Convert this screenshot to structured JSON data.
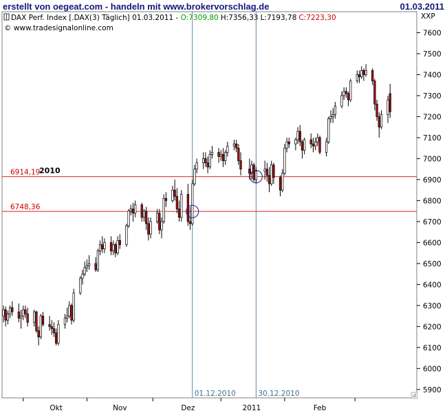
{
  "header": {
    "title": "erstellt von oegeat.com - handeln mit www.brokervorschlag.de",
    "date": "01.03.2011"
  },
  "info": {
    "instrument": "DAX Perf. Index [.DAX(3)  Täglich] 01.03.2011 -",
    "open": "O:7309,80",
    "high": "H:7356,33",
    "low": "L:7193,78",
    "close": "C:7223,30",
    "copyright": "© www.tradesignalonline.com"
  },
  "colors": {
    "up": "#ffffff",
    "down": "#aa1111",
    "hline": "#dd2222",
    "vline": "#5b8aa6",
    "open_green": "#009900",
    "close_red": "#cc0000"
  },
  "chart_data": {
    "type": "candlestick",
    "currency_label": "XXP",
    "ylim": [
      5860,
      7700
    ],
    "yticks": [
      5900,
      6000,
      6100,
      6200,
      6300,
      6400,
      6500,
      6600,
      6700,
      6800,
      6900,
      7000,
      7100,
      7200,
      7300,
      7400,
      7500,
      7600
    ],
    "ytick_labels": [
      "5900",
      "6000",
      "6100",
      "6200",
      "6300",
      "6400",
      "6500",
      "6600",
      "6700",
      "6800",
      "6900",
      "7000",
      "7100",
      "7200",
      "7300",
      "7400",
      "7500",
      "7600"
    ],
    "xlim": [
      "2010-09-06",
      "2011-03-10"
    ],
    "month_ticks": [
      "2010-09-15",
      "2010-10-14",
      "2010-11-13",
      "2010-12-14",
      "2011-01-12",
      "2011-02-13"
    ],
    "month_labels": [
      "Okt",
      "Nov",
      "Dez",
      "2011",
      "Feb"
    ],
    "month_label_dates": [
      "2010-09-30",
      "2010-10-29",
      "2010-11-29",
      "2010-12-28",
      "2011-01-28"
    ],
    "hlines": [
      {
        "value": 6914.19,
        "label": "6914,19",
        "tag": "2010"
      },
      {
        "value": 6748.36,
        "label": "6748,36",
        "tag": ""
      }
    ],
    "vlines": [
      {
        "date": "2010-12-01",
        "label": "01.12.2010"
      },
      {
        "date": "2010-12-30",
        "label": "30.12.2010"
      }
    ],
    "circles": [
      {
        "date": "2010-12-01",
        "value": 6748
      },
      {
        "date": "2010-12-30",
        "value": 6914
      }
    ],
    "candles": [
      [
        "2010-09-06",
        6250,
        6300,
        6220,
        6280
      ],
      [
        "2010-09-07",
        6280,
        6295,
        6200,
        6230
      ],
      [
        "2010-09-08",
        6230,
        6275,
        6210,
        6260
      ],
      [
        "2010-09-09",
        6260,
        6300,
        6240,
        6290
      ],
      [
        "2010-09-10",
        6290,
        6320,
        6250,
        6270
      ],
      [
        "2010-09-13",
        6270,
        6310,
        6220,
        6240
      ],
      [
        "2010-09-14",
        6240,
        6280,
        6190,
        6250
      ],
      [
        "2010-09-15",
        6250,
        6300,
        6230,
        6280
      ],
      [
        "2010-09-16",
        6280,
        6300,
        6240,
        6260
      ],
      [
        "2010-09-17",
        6260,
        6290,
        6200,
        6220
      ],
      [
        "2010-09-20",
        6220,
        6280,
        6200,
        6270
      ],
      [
        "2010-09-21",
        6270,
        6275,
        6170,
        6180
      ],
      [
        "2010-09-22",
        6180,
        6200,
        6110,
        6150
      ],
      [
        "2010-09-23",
        6150,
        6260,
        6140,
        6250
      ],
      [
        "2010-09-24",
        6250,
        6270,
        6200,
        6210
      ],
      [
        "2010-09-27",
        6210,
        6250,
        6180,
        6200
      ],
      [
        "2010-09-28",
        6200,
        6230,
        6160,
        6190
      ],
      [
        "2010-09-29",
        6190,
        6220,
        6150,
        6170
      ],
      [
        "2010-09-30",
        6170,
        6190,
        6110,
        6120
      ],
      [
        "2010-10-01",
        6120,
        6230,
        6110,
        6210
      ],
      [
        "2010-10-04",
        6210,
        6260,
        6190,
        6240
      ],
      [
        "2010-10-05",
        6240,
        6290,
        6220,
        6250
      ],
      [
        "2010-10-06",
        6250,
        6320,
        6240,
        6300
      ],
      [
        "2010-10-07",
        6300,
        6310,
        6210,
        6230
      ],
      [
        "2010-10-08",
        6230,
        6380,
        6220,
        6360
      ],
      [
        "2010-10-11",
        6360,
        6440,
        6350,
        6430
      ],
      [
        "2010-10-12",
        6430,
        6470,
        6400,
        6450
      ],
      [
        "2010-10-13",
        6450,
        6510,
        6440,
        6480
      ],
      [
        "2010-10-14",
        6480,
        6520,
        6460,
        6490
      ],
      [
        "2010-10-15",
        6490,
        6540,
        6470,
        6500
      ],
      [
        "2010-10-18",
        6500,
        6530,
        6460,
        6470
      ],
      [
        "2010-10-19",
        6470,
        6570,
        6460,
        6560
      ],
      [
        "2010-10-20",
        6560,
        6610,
        6540,
        6590
      ],
      [
        "2010-10-21",
        6590,
        6630,
        6550,
        6570
      ],
      [
        "2010-10-22",
        6570,
        6620,
        6550,
        6600
      ],
      [
        "2010-10-25",
        6600,
        6630,
        6540,
        6560
      ],
      [
        "2010-10-26",
        6560,
        6610,
        6540,
        6590
      ],
      [
        "2010-10-27",
        6590,
        6600,
        6530,
        6550
      ],
      [
        "2010-10-28",
        6550,
        6630,
        6540,
        6610
      ],
      [
        "2010-10-29",
        6610,
        6640,
        6570,
        6590
      ],
      [
        "2010-11-01",
        6590,
        6690,
        6580,
        6680
      ],
      [
        "2010-11-02",
        6680,
        6760,
        6670,
        6750
      ],
      [
        "2010-11-03",
        6750,
        6780,
        6730,
        6760
      ],
      [
        "2010-11-04",
        6760,
        6790,
        6700,
        6740
      ],
      [
        "2010-11-05",
        6740,
        6800,
        6720,
        6780
      ],
      [
        "2010-11-08",
        6780,
        6790,
        6700,
        6720
      ],
      [
        "2010-11-09",
        6720,
        6760,
        6700,
        6750
      ],
      [
        "2010-11-10",
        6750,
        6770,
        6660,
        6690
      ],
      [
        "2010-11-11",
        6690,
        6720,
        6610,
        6640
      ],
      [
        "2010-11-12",
        6640,
        6720,
        6620,
        6700
      ],
      [
        "2010-11-15",
        6700,
        6760,
        6690,
        6740
      ],
      [
        "2010-11-16",
        6740,
        6760,
        6640,
        6660
      ],
      [
        "2010-11-17",
        6660,
        6720,
        6620,
        6700
      ],
      [
        "2010-11-18",
        6700,
        6830,
        6690,
        6810
      ],
      [
        "2010-11-19",
        6810,
        6840,
        6770,
        6800
      ],
      [
        "2010-11-22",
        6800,
        6870,
        6790,
        6850
      ],
      [
        "2010-11-23",
        6850,
        6900,
        6800,
        6820
      ],
      [
        "2010-11-24",
        6820,
        6860,
        6740,
        6760
      ],
      [
        "2010-11-25",
        6760,
        6800,
        6700,
        6720
      ],
      [
        "2010-11-26",
        6720,
        6850,
        6700,
        6830
      ],
      [
        "2010-11-29",
        6830,
        6880,
        6680,
        6700
      ],
      [
        "2010-11-30",
        6700,
        6770,
        6660,
        6690
      ],
      [
        "2010-12-01",
        6690,
        6900,
        6680,
        6880
      ],
      [
        "2010-12-02",
        6880,
        6970,
        6870,
        6950
      ],
      [
        "2010-12-03",
        6950,
        7000,
        6930,
        6980
      ],
      [
        "2010-12-06",
        6980,
        7030,
        6950,
        7000
      ],
      [
        "2010-12-07",
        7000,
        7030,
        6960,
        6980
      ],
      [
        "2010-12-08",
        6980,
        7010,
        6930,
        6960
      ],
      [
        "2010-12-09",
        6960,
        7040,
        6950,
        7020
      ],
      [
        "2010-12-10",
        7020,
        7060,
        7000,
        7030
      ],
      [
        "2010-12-13",
        7030,
        7050,
        6980,
        7010
      ],
      [
        "2010-12-14",
        7010,
        7040,
        6990,
        7020
      ],
      [
        "2010-12-15",
        7020,
        7050,
        6960,
        6990
      ],
      [
        "2010-12-16",
        6990,
        7040,
        6970,
        7030
      ],
      [
        "2010-12-17",
        7030,
        7080,
        7010,
        7060
      ],
      [
        "2010-12-20",
        7060,
        7090,
        7040,
        7070
      ],
      [
        "2010-12-21",
        7070,
        7090,
        7030,
        7050
      ],
      [
        "2010-12-22",
        7050,
        7070,
        6970,
        6990
      ],
      [
        "2010-12-23",
        6990,
        7030,
        6920,
        6950
      ],
      [
        "2010-12-27",
        6950,
        7000,
        6900,
        6930
      ],
      [
        "2010-12-28",
        6930,
        6990,
        6900,
        6970
      ],
      [
        "2010-12-29",
        6970,
        6980,
        6890,
        6900
      ],
      [
        "2010-12-30",
        6900,
        6960,
        6880,
        6940
      ],
      [
        "2011-01-03",
        6940,
        6990,
        6900,
        6950
      ],
      [
        "2011-01-04",
        6950,
        6980,
        6890,
        6920
      ],
      [
        "2011-01-05",
        6920,
        6960,
        6840,
        6880
      ],
      [
        "2011-01-06",
        6880,
        6990,
        6870,
        6970
      ],
      [
        "2011-01-07",
        6970,
        6980,
        6880,
        6910
      ],
      [
        "2011-01-10",
        6910,
        6920,
        6820,
        6850
      ],
      [
        "2011-01-11",
        6850,
        6950,
        6840,
        6930
      ],
      [
        "2011-01-12",
        6930,
        7070,
        6920,
        7050
      ],
      [
        "2011-01-13",
        7050,
        7100,
        7030,
        7080
      ],
      [
        "2011-01-14",
        7080,
        7100,
        7050,
        7070
      ],
      [
        "2011-01-17",
        7070,
        7100,
        7040,
        7090
      ],
      [
        "2011-01-18",
        7090,
        7150,
        7070,
        7130
      ],
      [
        "2011-01-19",
        7130,
        7160,
        7060,
        7080
      ],
      [
        "2011-01-20",
        7080,
        7090,
        7000,
        7040
      ],
      [
        "2011-01-21",
        7040,
        7100,
        7020,
        7090
      ],
      [
        "2011-01-24",
        7090,
        7120,
        7050,
        7070
      ],
      [
        "2011-01-25",
        7070,
        7100,
        7030,
        7060
      ],
      [
        "2011-01-26",
        7060,
        7100,
        7040,
        7080
      ],
      [
        "2011-01-27",
        7080,
        7120,
        7060,
        7100
      ],
      [
        "2011-01-28",
        7100,
        7110,
        7020,
        7030
      ],
      [
        "2011-01-31",
        7030,
        7100,
        7010,
        7080
      ],
      [
        "2011-02-01",
        7080,
        7200,
        7070,
        7190
      ],
      [
        "2011-02-02",
        7190,
        7230,
        7170,
        7200
      ],
      [
        "2011-02-03",
        7200,
        7240,
        7170,
        7210
      ],
      [
        "2011-02-04",
        7210,
        7270,
        7190,
        7250
      ],
      [
        "2011-02-07",
        7250,
        7320,
        7240,
        7300
      ],
      [
        "2011-02-08",
        7300,
        7340,
        7280,
        7320
      ],
      [
        "2011-02-09",
        7320,
        7340,
        7290,
        7310
      ],
      [
        "2011-02-10",
        7310,
        7320,
        7250,
        7280
      ],
      [
        "2011-02-11",
        7280,
        7380,
        7270,
        7370
      ],
      [
        "2011-02-14",
        7370,
        7420,
        7360,
        7400
      ],
      [
        "2011-02-15",
        7400,
        7420,
        7360,
        7390
      ],
      [
        "2011-02-16",
        7390,
        7440,
        7380,
        7420
      ],
      [
        "2011-02-17",
        7420,
        7430,
        7370,
        7400
      ],
      [
        "2011-02-18",
        7400,
        7450,
        7390,
        7420
      ],
      [
        "2011-02-21",
        7420,
        7430,
        7350,
        7370
      ],
      [
        "2011-02-22",
        7370,
        7380,
        7230,
        7260
      ],
      [
        "2011-02-23",
        7260,
        7280,
        7180,
        7200
      ],
      [
        "2011-02-24",
        7200,
        7220,
        7100,
        7150
      ],
      [
        "2011-02-25",
        7150,
        7230,
        7140,
        7210
      ],
      [
        "2011-02-28",
        7210,
        7300,
        7170,
        7280
      ],
      [
        "2011-03-01",
        7309.8,
        7356.33,
        7193.78,
        7223.3
      ]
    ]
  }
}
